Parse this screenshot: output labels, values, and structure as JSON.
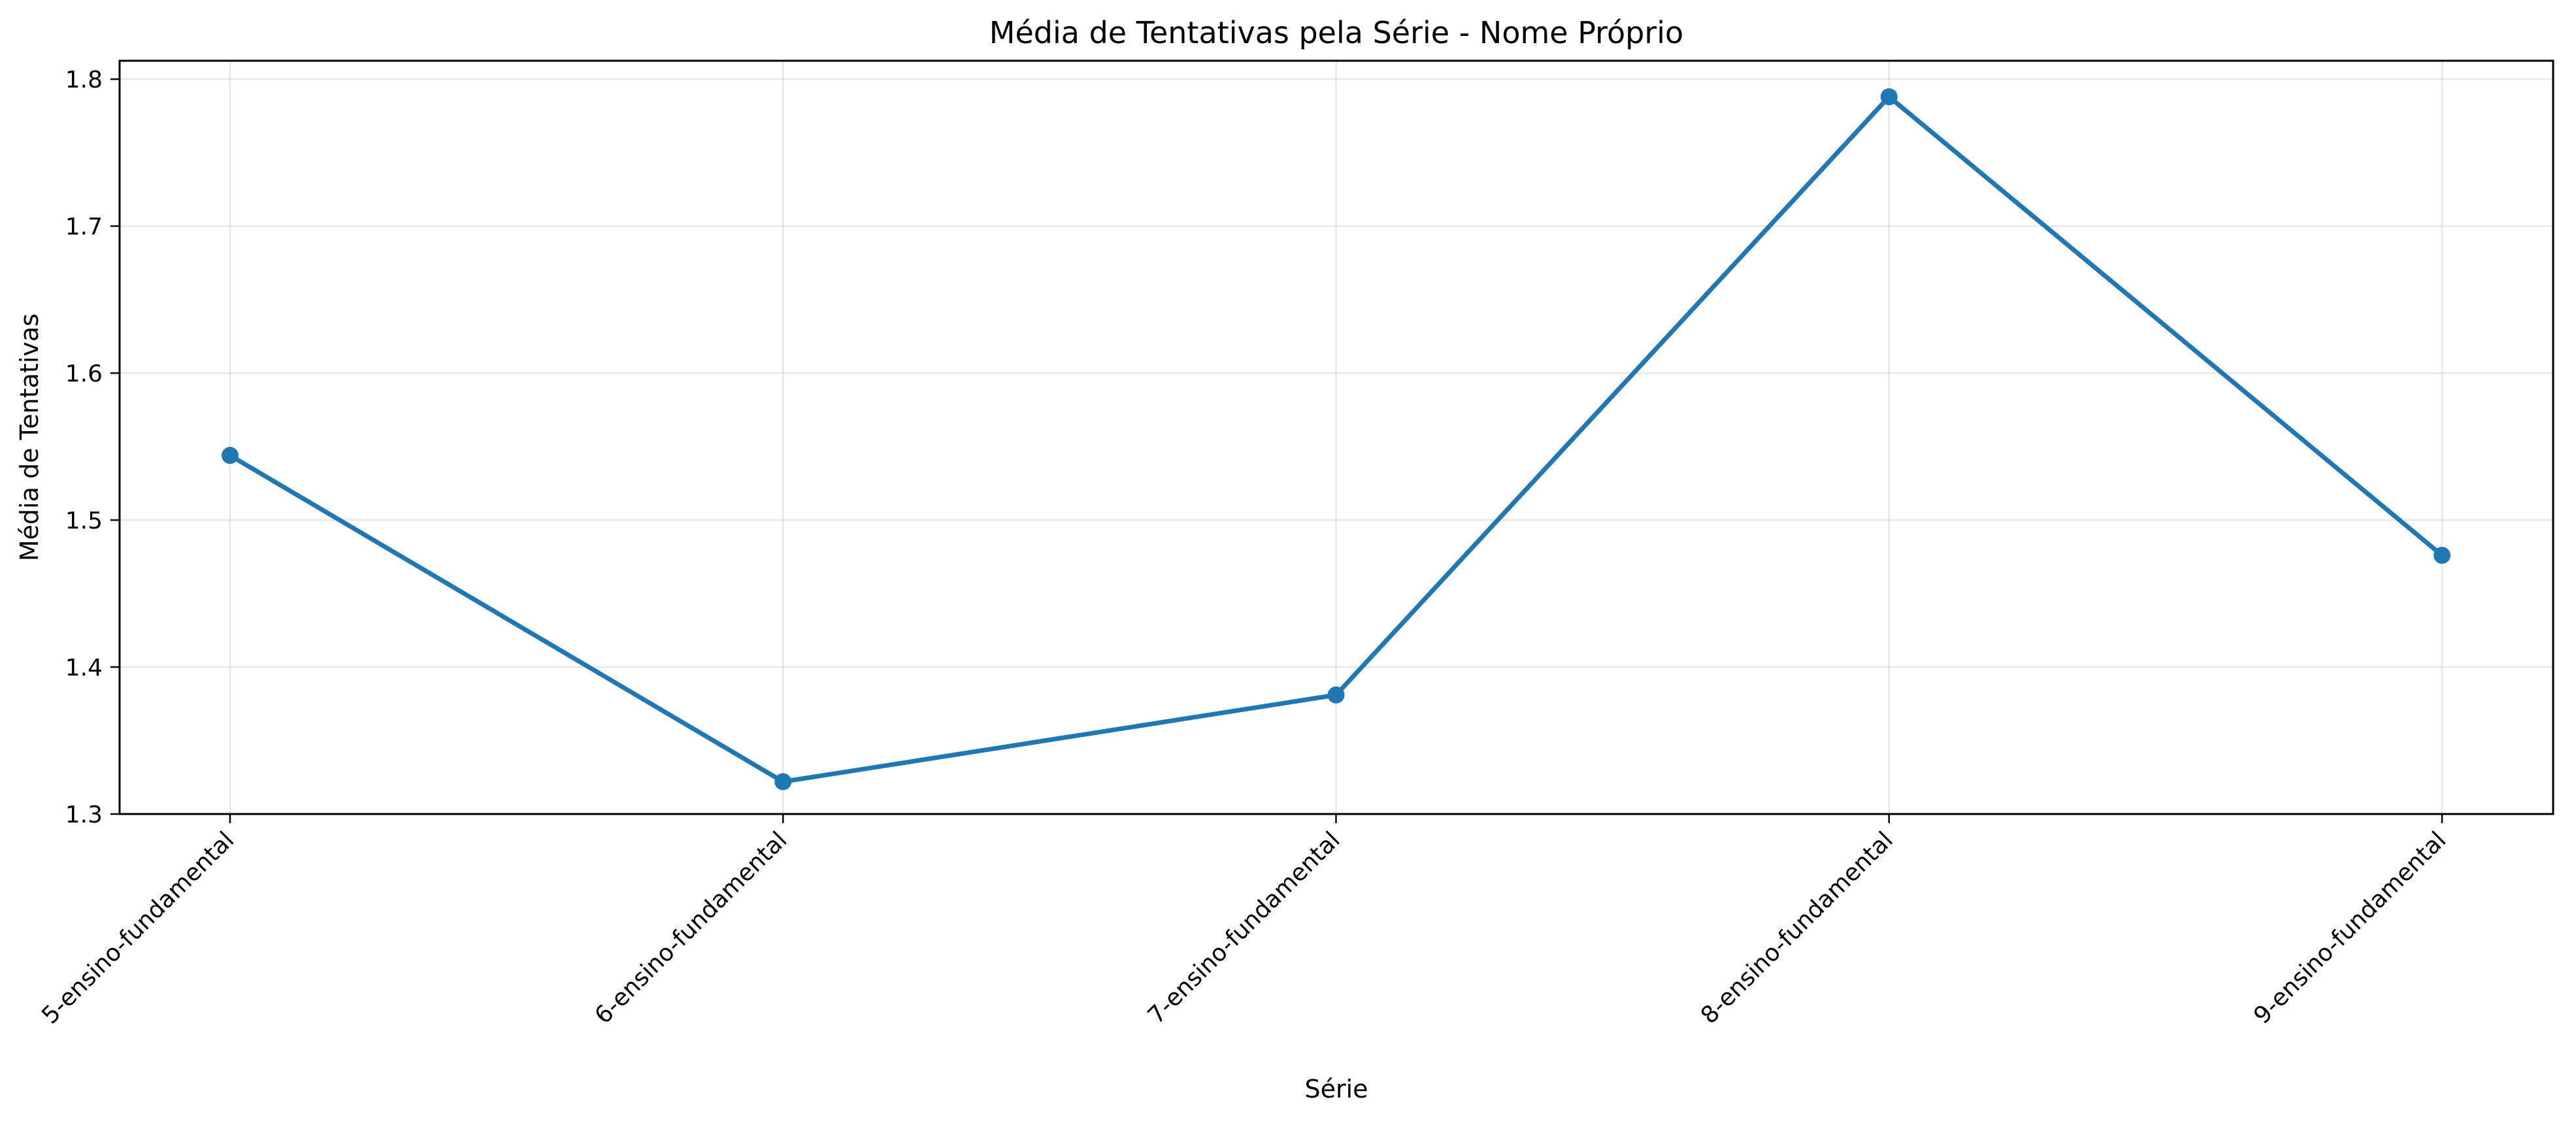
{
  "chart_data": {
    "type": "line",
    "title": "Média de Tentativas pela Série - Nome Próprio",
    "xlabel": "Série",
    "ylabel": "Média de Tentativas",
    "categories": [
      "5-ensino-fundamental",
      "6-ensino-fundamental",
      "7-ensino-fundamental",
      "8-ensino-fundamental",
      "9-ensino-fundamental"
    ],
    "series": [
      {
        "values": [
          1.544,
          1.322,
          1.381,
          1.788,
          1.476
        ],
        "color": "#1f77b4",
        "marker": "circle"
      }
    ],
    "ylim": [
      1.3,
      1.8125
    ],
    "yticks": [
      1.3,
      1.4,
      1.5,
      1.6,
      1.7,
      1.8
    ],
    "ytick_labels": [
      "1.3",
      "1.4",
      "1.5",
      "1.6",
      "1.7",
      "1.8"
    ],
    "grid": true,
    "xtick_rotation": 45
  }
}
